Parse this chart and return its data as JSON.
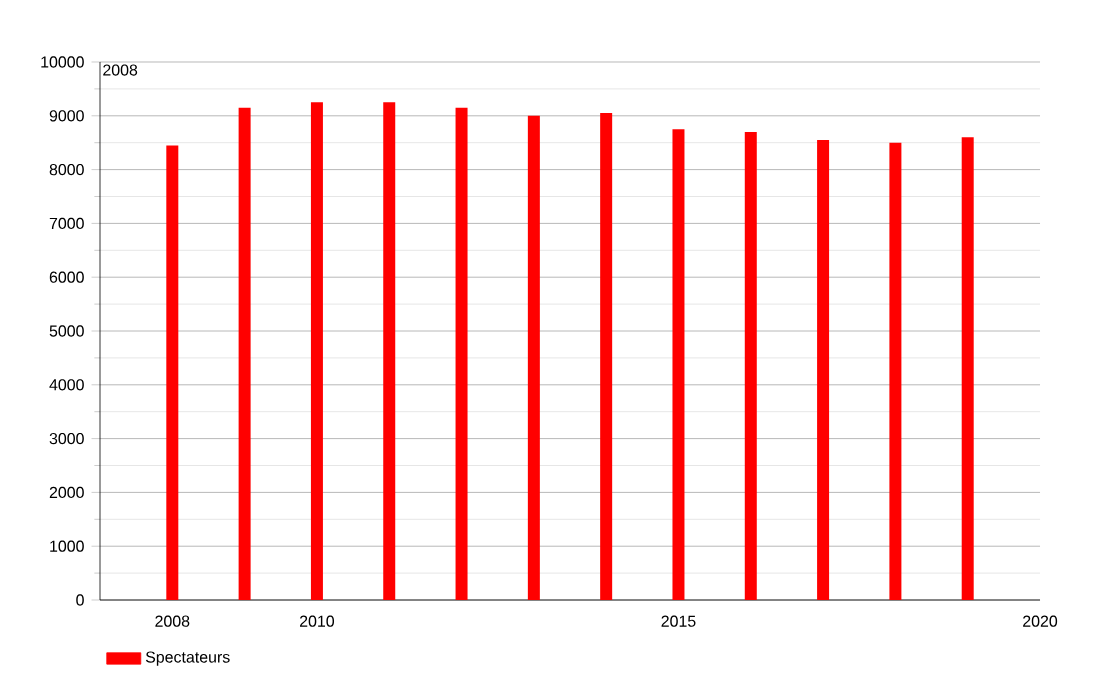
{
  "chart_data": {
    "type": "bar",
    "x": [
      2008,
      2009,
      2010,
      2011,
      2012,
      2013,
      2014,
      2015,
      2016,
      2017,
      2018,
      2019
    ],
    "series": [
      {
        "name": "Spectateurs",
        "color": "#ff0000",
        "values": [
          8450,
          9150,
          9250,
          9250,
          9150,
          9000,
          9050,
          8750,
          8700,
          8550,
          8500,
          8600
        ]
      }
    ],
    "xlim": [
      2007,
      2020
    ],
    "xticks": [
      2008,
      2010,
      2015,
      2020
    ],
    "ylim": [
      0,
      10000
    ],
    "yticks": [
      0,
      1000,
      2000,
      3000,
      4000,
      5000,
      6000,
      7000,
      8000,
      9000,
      10000
    ],
    "grid": "y",
    "legend": "bottom left",
    "annotations": [
      "2008"
    ]
  }
}
